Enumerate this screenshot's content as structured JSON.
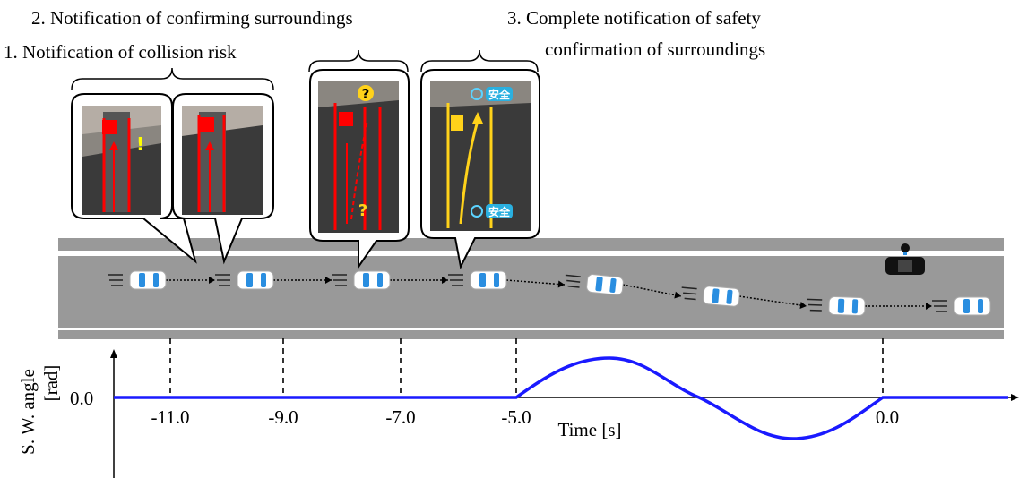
{
  "annotations": {
    "step1": "1. Notification of collision risk",
    "step2": "2. Notification of confirming surroundings",
    "step3_line1": "3. Complete notification of safety",
    "step3_line2": "confirmation of surroundings"
  },
  "panel_texts": {
    "exclamation": "!",
    "question": "?",
    "safe": "安全"
  },
  "axis": {
    "y_label_line1": "S. W. angle",
    "y_label_line2": "[rad]",
    "y_tick": "0.0",
    "x_label": "Time [s]",
    "x_ticks": [
      "-11.0",
      "-9.0",
      "-7.0",
      "-5.0",
      "0.0"
    ]
  }
}
